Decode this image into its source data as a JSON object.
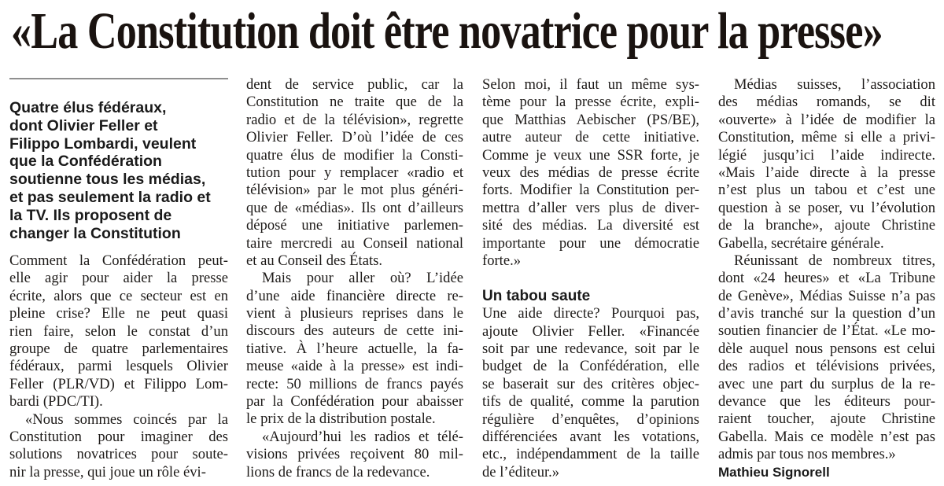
{
  "headline": "«La Constitution doit être novatrice pour la presse»",
  "lead_lines": [
    "Quatre élus fédéraux,",
    "dont Olivier Feller et",
    "Filippo Lombardi, veulent",
    "que la Confédération",
    "soutienne tous les médias,",
    "et pas seulement la radio et",
    "la TV. Ils proposent de",
    "changer la Constitution"
  ],
  "columns": [
    {
      "blocks": [
        {
          "type": "p",
          "indent": false,
          "lines": [
            "Comment la Confédération peut-",
            "elle agir pour aider la presse",
            "écrite, alors que ce secteur est en",
            "pleine crise? Elle ne peut quasi",
            "rien faire, selon le constat d’un",
            "groupe de quatre parlementaires",
            "fédéraux, parmi lesquels Olivier",
            "Feller (PLR/VD) et Filippo Lom-",
            "bardi (PDC/TI)."
          ]
        },
        {
          "type": "p",
          "indent": true,
          "cont": true,
          "lines": [
            "«Nous sommes coincés par la",
            "Constitution pour imaginer des",
            "solutions novatrices pour soute-",
            "nir la presse, qui joue un rôle évi-"
          ]
        }
      ]
    },
    {
      "blocks": [
        {
          "type": "p",
          "indent": false,
          "lines": [
            "dent de service public, car la",
            "Constitution ne traite que de la",
            "radio et de la télévision», regrette",
            "Olivier Feller. D’où l’idée de ces",
            "quatre élus de modifier la Consti-",
            "tution pour y remplacer «radio et",
            "télévision» par le mot plus généri-",
            "que de «médias». Ils ont d’ailleurs",
            "déposé une initiative parlemen-",
            "taire mercredi au Conseil national",
            "et au Conseil des États."
          ]
        },
        {
          "type": "p",
          "indent": true,
          "lines": [
            "Mais pour aller où? L’idée",
            "d’une aide financière directe re-",
            "vient à plusieurs reprises dans le",
            "discours des auteurs de cette ini-",
            "tiative. À l’heure actuelle, la fa-",
            "meuse «aide à la presse» est indi-",
            "recte: 50 millions de francs payés",
            "par la Confédération pour abaisser",
            "le prix de la distribution postale."
          ]
        },
        {
          "type": "p",
          "indent": true,
          "cont": true,
          "lines": [
            "«Aujourd’hui les radios et télé-",
            "visions privées reçoivent 80 mil-",
            "lions de francs de la redevance."
          ]
        }
      ]
    },
    {
      "blocks": [
        {
          "type": "p",
          "indent": false,
          "lines": [
            "Selon moi, il faut un même sys-",
            "tème pour la presse écrite, expli-",
            "que Matthias Aebischer (PS/BE),",
            "autre auteur de cette initiative.",
            "Comme je veux une SSR forte, je",
            "veux des médias de presse écrite",
            "forts. Modifier la Constitution per-",
            "mettra d’aller vers plus de diver-",
            "sité des médias. La diversité est",
            "importante pour une démocratie",
            "forte.»"
          ]
        },
        {
          "type": "sub",
          "text": "Un tabou saute"
        },
        {
          "type": "p",
          "indent": false,
          "lines": [
            "Une aide directe? Pourquoi pas,",
            "ajoute Olivier Feller. «Financée",
            "soit par une redevance, soit par le",
            "budget de la Confédération, elle",
            "se baserait sur des critères objec-",
            "tifs de qualité, comme la parution",
            "régulière d’enquêtes, d’opinions",
            "différenciées avant les votations,",
            "etc., indépendamment de la taille",
            "de l’éditeur.»"
          ]
        }
      ]
    },
    {
      "blocks": [
        {
          "type": "p",
          "indent": true,
          "lines": [
            "Médias suisses, l’association",
            "des médias romands, se dit",
            "«ouverte» à l’idée de modifier la",
            "Constitution, même si elle a privi-",
            "légié jusqu’ici l’aide indirecte.",
            "«Mais l’aide directe à la presse",
            "n’est plus un tabou et c’est une",
            "question à se poser, vu l’évolution",
            "de la branche», ajoute Christine",
            "Gabella, secrétaire générale."
          ]
        },
        {
          "type": "p",
          "indent": true,
          "lines": [
            "Réunissant de nombreux titres,",
            "dont «24 heures» et «La Tribune",
            "de Genève», Médias Suisse n’a pas",
            "d’avis tranché sur la question d’un",
            "soutien financier de l’État. «Le mo-",
            "dèle auquel nous pensons est celui",
            "des radios et télévisions privées,",
            "avec une part du surplus de la re-",
            "devance que les éditeurs pour-",
            "raient toucher, ajoute Christine",
            "Gabella. Mais ce modèle n’est pas",
            "admis par tous nos membres.»"
          ]
        },
        {
          "type": "byline",
          "text": "Mathieu Signorell"
        }
      ]
    }
  ]
}
